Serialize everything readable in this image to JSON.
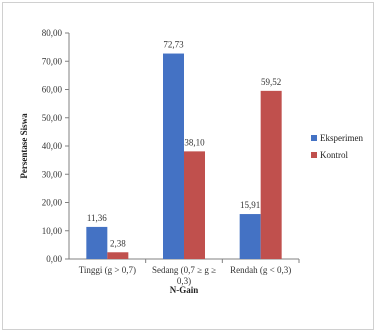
{
  "chart_data": {
    "type": "bar",
    "categories": [
      "Tinggi (g > 0,7)",
      "Sedang (0,7 ≥ g ≥ 0,3)",
      "Rendah (g < 0,3)"
    ],
    "category_lines": [
      [
        "Tinggi (g > 0,7)"
      ],
      [
        "Sedang (0,7 ≥ g ≥",
        "0,3)"
      ],
      [
        "Rendah (g < 0,3)"
      ]
    ],
    "series": [
      {
        "name": "Eksperimen",
        "values": [
          11.36,
          72.73,
          15.91
        ],
        "labels": [
          "11,36",
          "72,73",
          "15,91"
        ],
        "color": "#4472C4"
      },
      {
        "name": "Kontrol",
        "values": [
          2.38,
          38.1,
          59.52
        ],
        "labels": [
          "2,38",
          "38,10",
          "59,52"
        ],
        "color": "#C0504D"
      }
    ],
    "ylim": [
      0,
      80
    ],
    "y_ticks": [
      "0,00",
      "10,00",
      "20,00",
      "30,00",
      "40,00",
      "50,00",
      "60,00",
      "70,00",
      "80,00"
    ],
    "y_tick_values": [
      0,
      10,
      20,
      30,
      40,
      50,
      60,
      70,
      80
    ],
    "xlabel": "N-Gain",
    "ylabel": "Persentase Siswa",
    "legend_position": "right",
    "grid": false
  }
}
